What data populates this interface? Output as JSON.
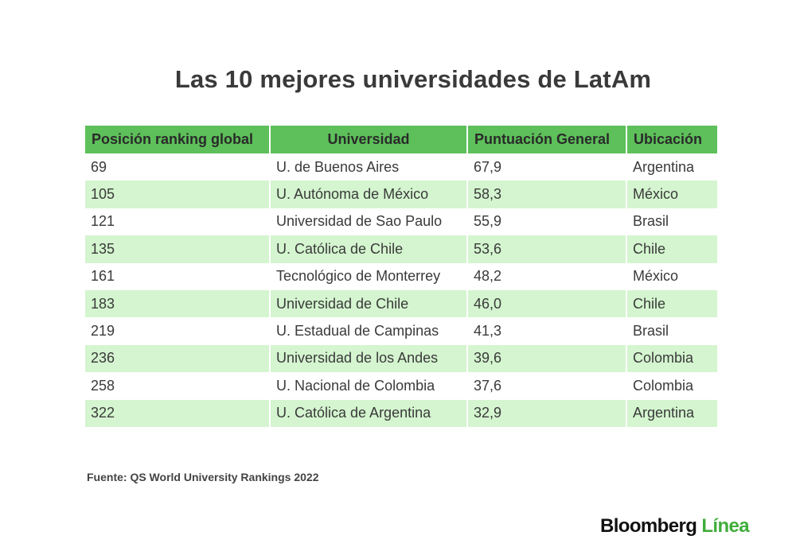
{
  "chart_data": {
    "type": "table",
    "title": "Las 10 mejores universidades de LatAm",
    "columns": [
      "Posición ranking global",
      "Universidad",
      "Puntuación General",
      "Ubicación"
    ],
    "rows": [
      [
        "69",
        "U. de Buenos Aires",
        "67,9",
        "Argentina"
      ],
      [
        "105",
        "U. Autónoma de México",
        "58,3",
        "México"
      ],
      [
        "121",
        "Universidad de Sao Paulo",
        "55,9",
        "Brasil"
      ],
      [
        "135",
        "U. Católica de Chile",
        "53,6",
        "Chile"
      ],
      [
        "161",
        "Tecnológico de Monterrey",
        "48,2",
        "México"
      ],
      [
        "183",
        "Universidad de Chile",
        "46,0",
        "Chile"
      ],
      [
        "219",
        "U. Estadual de Campinas",
        "41,3",
        "Brasil"
      ],
      [
        "236",
        "Universidad de los Andes",
        "39,6",
        "Colombia"
      ],
      [
        "258",
        "U. Nacional de Colombia",
        "37,6",
        "Colombia"
      ],
      [
        "322",
        "U. Católica de Argentina",
        "32,9",
        "Argentina"
      ]
    ]
  },
  "source": "Fuente: QS World University Rankings 2022",
  "logo": {
    "brand": "Bloomberg",
    "suffix": "Línea"
  },
  "colors": {
    "header": "#5dc05a",
    "alt_row": "#d4f5cf",
    "logo_accent": "#3fae3a"
  }
}
